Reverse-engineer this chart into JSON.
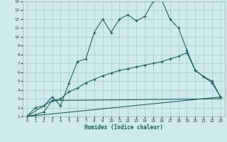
{
  "xlabel": "Humidex (Indice chaleur)",
  "xlim": [
    -0.5,
    23.5
  ],
  "ylim": [
    1,
    14
  ],
  "xticks": [
    0,
    1,
    2,
    3,
    4,
    5,
    6,
    7,
    8,
    9,
    10,
    11,
    12,
    13,
    14,
    15,
    16,
    17,
    18,
    19,
    20,
    21,
    22,
    23
  ],
  "yticks": [
    1,
    2,
    3,
    4,
    5,
    6,
    7,
    8,
    9,
    10,
    11,
    12,
    13,
    14
  ],
  "bg_color": "#ceeaea",
  "grid_color": "#aac8c8",
  "line_color": "#1a5c5c",
  "line1_x": [
    0,
    1,
    2,
    3,
    4,
    5,
    6,
    7,
    8,
    9,
    10,
    11,
    12,
    13,
    14,
    15,
    16,
    17,
    18,
    19,
    20,
    21,
    22,
    23
  ],
  "line1_y": [
    1.0,
    2.0,
    2.2,
    3.2,
    2.2,
    4.8,
    7.2,
    7.5,
    10.5,
    12.0,
    10.5,
    12.0,
    12.5,
    11.8,
    12.3,
    14.0,
    14.2,
    12.0,
    11.0,
    8.5,
    6.2,
    5.5,
    4.8,
    3.2
  ],
  "line2_x": [
    0,
    1,
    2,
    3,
    4,
    5,
    6,
    7,
    8,
    9,
    10,
    11,
    12,
    13,
    14,
    15,
    16,
    17,
    18,
    19,
    20,
    21,
    22,
    23
  ],
  "line2_y": [
    1.0,
    1.2,
    1.5,
    2.8,
    3.0,
    3.8,
    4.2,
    4.8,
    5.2,
    5.6,
    5.9,
    6.2,
    6.4,
    6.6,
    6.8,
    7.0,
    7.2,
    7.5,
    7.8,
    8.2,
    6.2,
    5.5,
    5.0,
    3.2
  ],
  "line3_x": [
    0,
    3,
    23
  ],
  "line3_y": [
    1.0,
    2.8,
    3.0
  ],
  "line4_x": [
    0,
    23
  ],
  "line4_y": [
    1.0,
    3.2
  ]
}
